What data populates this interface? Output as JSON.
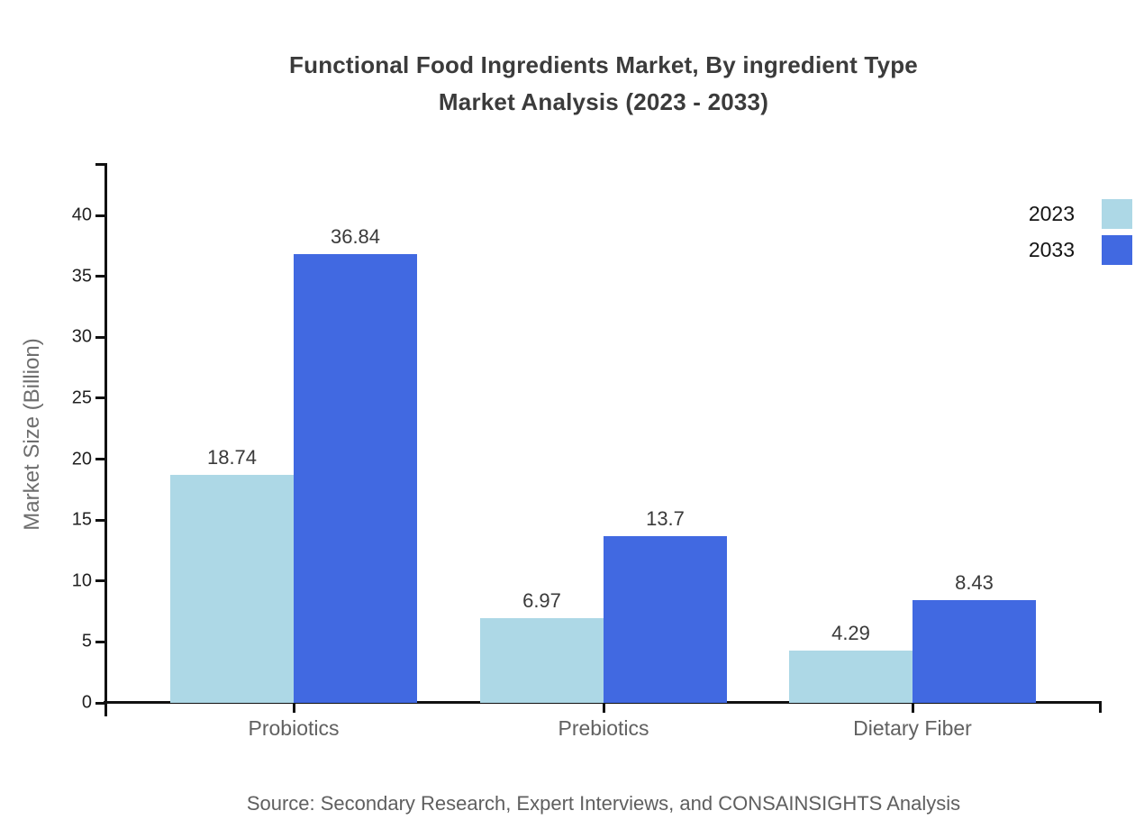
{
  "title": {
    "line1": "Functional Food Ingredients Market, By ingredient Type",
    "line2": "Market Analysis (2023 - 2033)"
  },
  "chart_data": {
    "type": "bar",
    "categories": [
      "Probiotics",
      "Prebiotics",
      "Dietary Fiber"
    ],
    "series": [
      {
        "name": "2023",
        "color": "#ADD8E6",
        "values": [
          18.74,
          6.97,
          4.29
        ]
      },
      {
        "name": "2033",
        "color": "#4169E1",
        "values": [
          36.84,
          13.7,
          8.43
        ]
      }
    ],
    "xlabel": "",
    "ylabel": "Market Size (Billion)",
    "ylim": [
      0,
      44.3
    ],
    "yticks": [
      0,
      5,
      10,
      15,
      20,
      25,
      30,
      35,
      40
    ],
    "grid": false,
    "legend_position": "top-right",
    "value_labels_shown": true
  },
  "source": "Source: Secondary Research, Expert Interviews, and CONSAINSIGHTS Analysis",
  "colors": {
    "series_2023": "#ADD8E6",
    "series_2033": "#4169E1",
    "axis": "#111111",
    "title_text": "#3b3b3b",
    "muted_text": "#616161"
  }
}
